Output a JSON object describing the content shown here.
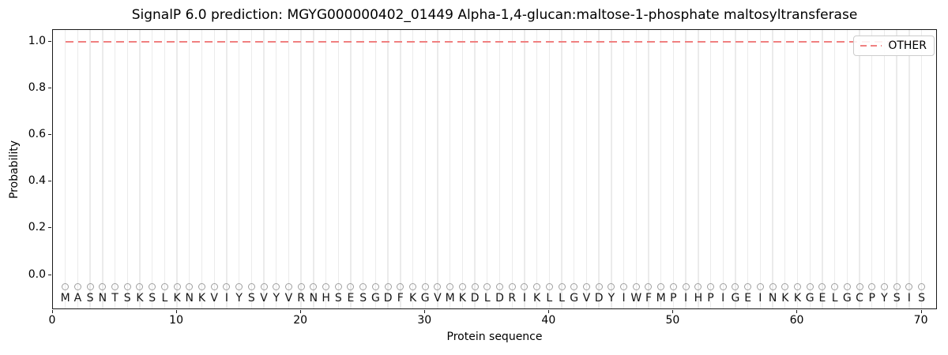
{
  "chart_data": {
    "type": "line",
    "title": "SignalP 6.0 prediction: MGYG000000402_01449 Alpha-1,4-glucan:maltose-1-phosphate maltosyltransferase",
    "xlabel": "Protein sequence",
    "ylabel": "Probability",
    "xlim": [
      0,
      71.3
    ],
    "ylim": [
      -0.15,
      1.05
    ],
    "x_ticks": [
      0,
      10,
      20,
      30,
      40,
      50,
      60,
      70
    ],
    "y_ticks": [
      0.0,
      0.2,
      0.4,
      0.6,
      0.8,
      1.0
    ],
    "grid": "vertical gridline at every residue position 1-70",
    "legend_position": "upper right",
    "sequence": "MASNTSKSLKNKVIYSVYVRNHSESGDFKGVMKDLDRIKLLGVDYIWFMPIHPIGEINKKGELGCPYSIS",
    "sequence_length": 70,
    "marker_row_y": -0.05,
    "letter_row_y": -0.1,
    "series": [
      {
        "name": "OTHER",
        "style": "dashed",
        "color": "#f08080",
        "x_start": 1,
        "x_end": 70,
        "values": [
          1.0,
          1.0,
          1.0,
          1.0,
          1.0,
          1.0,
          1.0,
          1.0,
          1.0,
          1.0,
          1.0,
          1.0,
          1.0,
          1.0,
          1.0,
          1.0,
          1.0,
          1.0,
          1.0,
          1.0,
          1.0,
          1.0,
          1.0,
          1.0,
          1.0,
          1.0,
          1.0,
          1.0,
          1.0,
          1.0,
          1.0,
          1.0,
          1.0,
          1.0,
          1.0,
          1.0,
          1.0,
          1.0,
          1.0,
          1.0,
          1.0,
          1.0,
          1.0,
          1.0,
          1.0,
          1.0,
          1.0,
          1.0,
          1.0,
          1.0,
          1.0,
          1.0,
          1.0,
          1.0,
          1.0,
          1.0,
          1.0,
          1.0,
          1.0,
          1.0,
          1.0,
          1.0,
          1.0,
          1.0,
          1.0,
          1.0,
          1.0,
          1.0,
          1.0,
          1.0
        ]
      }
    ],
    "colors": {
      "line_other": "#f08080",
      "grid": "#ebebeb",
      "marker": "#a0a0a0",
      "spine": "#1a1a1a"
    }
  }
}
